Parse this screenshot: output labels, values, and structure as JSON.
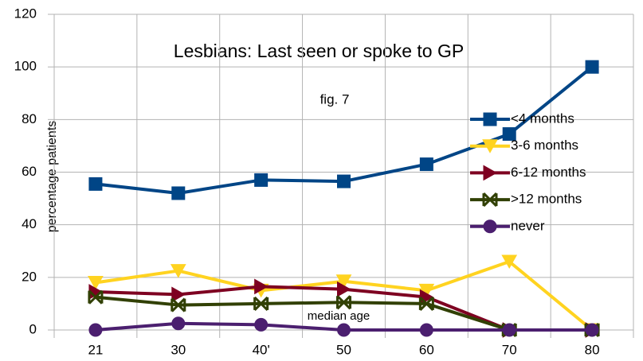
{
  "chart_data": {
    "type": "line",
    "title": "Lesbians: Last seen or spoke to GP",
    "subtitle": "fig. 7",
    "x_label": "median age",
    "y_label": "percentage patients",
    "categories": [
      "21",
      "30",
      "40'",
      "50",
      "60",
      "70",
      "80"
    ],
    "series": [
      {
        "name": "<4 months",
        "color": "#004586",
        "marker": "square",
        "values": [
          55.5,
          52,
          57,
          56.5,
          63,
          74.5,
          100
        ]
      },
      {
        "name": "3-6 months",
        "color": "#ffd320",
        "marker": "triangle-down",
        "values": [
          18,
          22.5,
          15,
          18.5,
          15,
          26,
          0
        ]
      },
      {
        "name": "6-12 months",
        "color": "#7e0021",
        "marker": "triangle-right",
        "values": [
          14.5,
          13.5,
          16.5,
          15.5,
          12.5,
          0,
          0
        ]
      },
      {
        "name": ">12 months",
        "color": "#314004",
        "marker": "cross",
        "values": [
          12.5,
          9.5,
          10,
          10.5,
          10,
          0,
          0
        ]
      },
      {
        "name": "never",
        "color": "#4b1f6f",
        "marker": "circle",
        "values": [
          0,
          2.5,
          2,
          0,
          0,
          0,
          0
        ]
      }
    ],
    "ylim": [
      0,
      120
    ],
    "yticks": [
      0,
      20,
      40,
      60,
      80,
      100,
      120
    ],
    "grid": true,
    "legend": "right"
  }
}
